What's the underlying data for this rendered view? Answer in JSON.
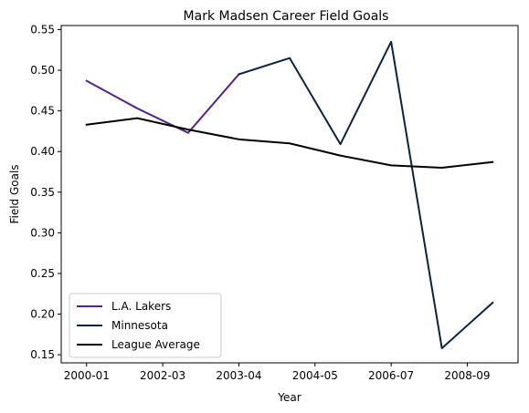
{
  "chart_data": {
    "type": "line",
    "title": "Mark Madsen Career Field Goals",
    "xlabel": "Year",
    "ylabel": "Field Goals",
    "x_tick_labels": [
      "2000-01",
      "2002-03",
      "2003-04",
      "2004-05",
      "2006-07",
      "2008-09"
    ],
    "y_ticks": [
      0.15,
      0.2,
      0.25,
      0.3,
      0.35,
      0.4,
      0.45,
      0.5,
      0.55
    ],
    "y_tick_labels": [
      "0.15",
      "0.20",
      "0.25",
      "0.30",
      "0.35",
      "0.40",
      "0.45",
      "0.50",
      "0.55"
    ],
    "ylim": [
      0.14,
      0.555
    ],
    "grid": false,
    "legend_position": "lower-left",
    "series": [
      {
        "name": "L.A. Lakers",
        "color": "#552583",
        "points": [
          [
            0,
            0.487
          ],
          [
            1,
            0.453
          ],
          [
            2,
            0.423
          ],
          [
            3,
            0.495
          ]
        ]
      },
      {
        "name": "Minnesota",
        "color": "#0C2340",
        "points": [
          [
            3,
            0.495
          ],
          [
            4,
            0.515
          ],
          [
            5,
            0.409
          ],
          [
            6,
            0.535
          ],
          [
            7,
            0.158
          ],
          [
            8,
            0.214
          ]
        ]
      },
      {
        "name": "League Average",
        "color": "#000000",
        "points": [
          [
            0,
            0.433
          ],
          [
            1,
            0.441
          ],
          [
            2,
            0.427
          ],
          [
            3,
            0.415
          ],
          [
            4,
            0.41
          ],
          [
            5,
            0.395
          ],
          [
            6,
            0.383
          ],
          [
            7,
            0.38
          ],
          [
            8,
            0.387
          ]
        ]
      }
    ]
  }
}
